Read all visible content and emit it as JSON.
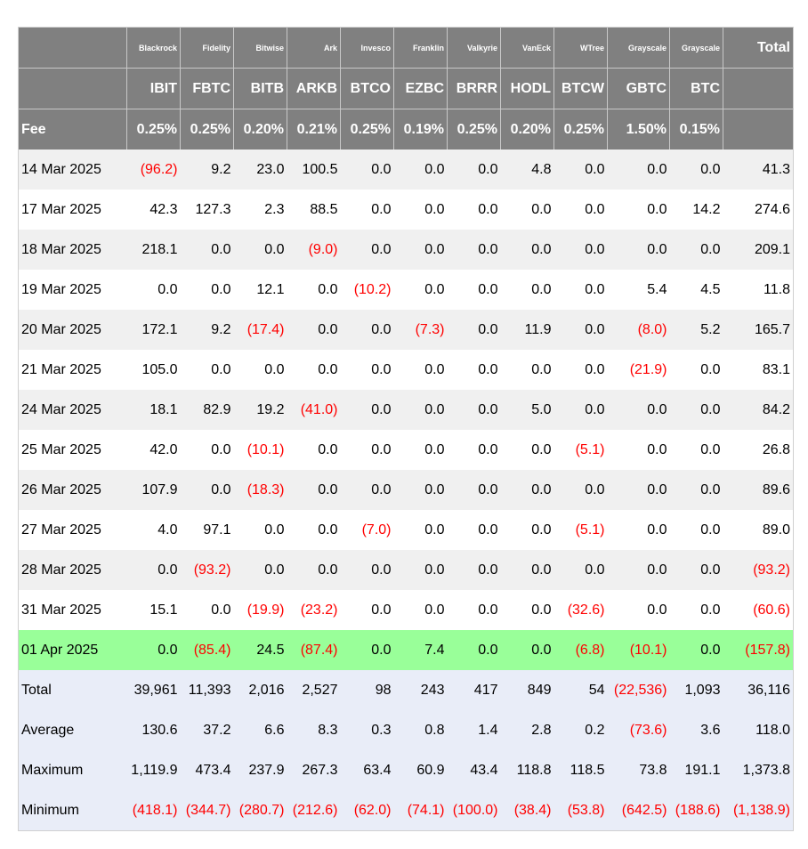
{
  "header": {
    "issuers": [
      "Blackrock",
      "Fidelity",
      "Bitwise",
      "Ark",
      "Invesco",
      "Franklin",
      "Valkyrie",
      "VanEck",
      "WTree",
      "Grayscale",
      "Grayscale"
    ],
    "total_label": "Total",
    "tickers": [
      "IBIT",
      "FBTC",
      "BITB",
      "ARKB",
      "BTCO",
      "EZBC",
      "BRRR",
      "HODL",
      "BTCW",
      "GBTC",
      "BTC"
    ],
    "fee_label": "Fee",
    "fees": [
      "0.25%",
      "0.25%",
      "0.20%",
      "0.21%",
      "0.25%",
      "0.19%",
      "0.25%",
      "0.20%",
      "0.25%",
      "1.50%",
      "0.15%"
    ]
  },
  "rows": [
    {
      "date": "14 Mar 2025",
      "values": [
        "(96.2)",
        "9.2",
        "23.0",
        "100.5",
        "0.0",
        "0.0",
        "0.0",
        "4.8",
        "0.0",
        "0.0",
        "0.0"
      ],
      "total": "41.3"
    },
    {
      "date": "17 Mar 2025",
      "values": [
        "42.3",
        "127.3",
        "2.3",
        "88.5",
        "0.0",
        "0.0",
        "0.0",
        "0.0",
        "0.0",
        "0.0",
        "14.2"
      ],
      "total": "274.6"
    },
    {
      "date": "18 Mar 2025",
      "values": [
        "218.1",
        "0.0",
        "0.0",
        "(9.0)",
        "0.0",
        "0.0",
        "0.0",
        "0.0",
        "0.0",
        "0.0",
        "0.0"
      ],
      "total": "209.1"
    },
    {
      "date": "19 Mar 2025",
      "values": [
        "0.0",
        "0.0",
        "12.1",
        "0.0",
        "(10.2)",
        "0.0",
        "0.0",
        "0.0",
        "0.0",
        "5.4",
        "4.5"
      ],
      "total": "11.8"
    },
    {
      "date": "20 Mar 2025",
      "values": [
        "172.1",
        "9.2",
        "(17.4)",
        "0.0",
        "0.0",
        "(7.3)",
        "0.0",
        "11.9",
        "0.0",
        "(8.0)",
        "5.2"
      ],
      "total": "165.7"
    },
    {
      "date": "21 Mar 2025",
      "values": [
        "105.0",
        "0.0",
        "0.0",
        "0.0",
        "0.0",
        "0.0",
        "0.0",
        "0.0",
        "0.0",
        "(21.9)",
        "0.0"
      ],
      "total": "83.1"
    },
    {
      "date": "24 Mar 2025",
      "values": [
        "18.1",
        "82.9",
        "19.2",
        "(41.0)",
        "0.0",
        "0.0",
        "0.0",
        "5.0",
        "0.0",
        "0.0",
        "0.0"
      ],
      "total": "84.2"
    },
    {
      "date": "25 Mar 2025",
      "values": [
        "42.0",
        "0.0",
        "(10.1)",
        "0.0",
        "0.0",
        "0.0",
        "0.0",
        "0.0",
        "(5.1)",
        "0.0",
        "0.0"
      ],
      "total": "26.8"
    },
    {
      "date": "26 Mar 2025",
      "values": [
        "107.9",
        "0.0",
        "(18.3)",
        "0.0",
        "0.0",
        "0.0",
        "0.0",
        "0.0",
        "0.0",
        "0.0",
        "0.0"
      ],
      "total": "89.6"
    },
    {
      "date": "27 Mar 2025",
      "values": [
        "4.0",
        "97.1",
        "0.0",
        "0.0",
        "(7.0)",
        "0.0",
        "0.0",
        "0.0",
        "(5.1)",
        "0.0",
        "0.0"
      ],
      "total": "89.0"
    },
    {
      "date": "28 Mar 2025",
      "values": [
        "0.0",
        "(93.2)",
        "0.0",
        "0.0",
        "0.0",
        "0.0",
        "0.0",
        "0.0",
        "0.0",
        "0.0",
        "0.0"
      ],
      "total": "(93.2)"
    },
    {
      "date": "31 Mar 2025",
      "values": [
        "15.1",
        "0.0",
        "(19.9)",
        "(23.2)",
        "0.0",
        "0.0",
        "0.0",
        "0.0",
        "(32.6)",
        "0.0",
        "0.0"
      ],
      "total": "(60.6)"
    },
    {
      "date": "01 Apr 2025",
      "values": [
        "0.0",
        "(85.4)",
        "24.5",
        "(87.4)",
        "0.0",
        "7.4",
        "0.0",
        "0.0",
        "(6.8)",
        "(10.1)",
        "0.0"
      ],
      "total": "(157.8)",
      "highlight": true
    }
  ],
  "summary": [
    {
      "label": "Total",
      "values": [
        "39,961",
        "11,393",
        "2,016",
        "2,527",
        "98",
        "243",
        "417",
        "849",
        "54",
        "(22,536)",
        "1,093"
      ],
      "total": "36,116"
    },
    {
      "label": "Average",
      "values": [
        "130.6",
        "37.2",
        "6.6",
        "8.3",
        "0.3",
        "0.8",
        "1.4",
        "2.8",
        "0.2",
        "(73.6)",
        "3.6"
      ],
      "total": "118.0"
    },
    {
      "label": "Maximum",
      "values": [
        "1,119.9",
        "473.4",
        "237.9",
        "267.3",
        "63.4",
        "60.9",
        "43.4",
        "118.8",
        "118.5",
        "73.8",
        "191.1"
      ],
      "total": "1,373.8"
    },
    {
      "label": "Minimum",
      "values": [
        "(418.1)",
        "(344.7)",
        "(280.7)",
        "(212.6)",
        "(62.0)",
        "(74.1)",
        "(100.0)",
        "(38.4)",
        "(53.8)",
        "(642.5)",
        "(188.6)"
      ],
      "total": "(1,138.9)"
    }
  ],
  "colors": {
    "header_bg": "#808080",
    "negative": "#ff0000",
    "highlight": "#99ff99",
    "summary_bg": "#e9edf8"
  }
}
